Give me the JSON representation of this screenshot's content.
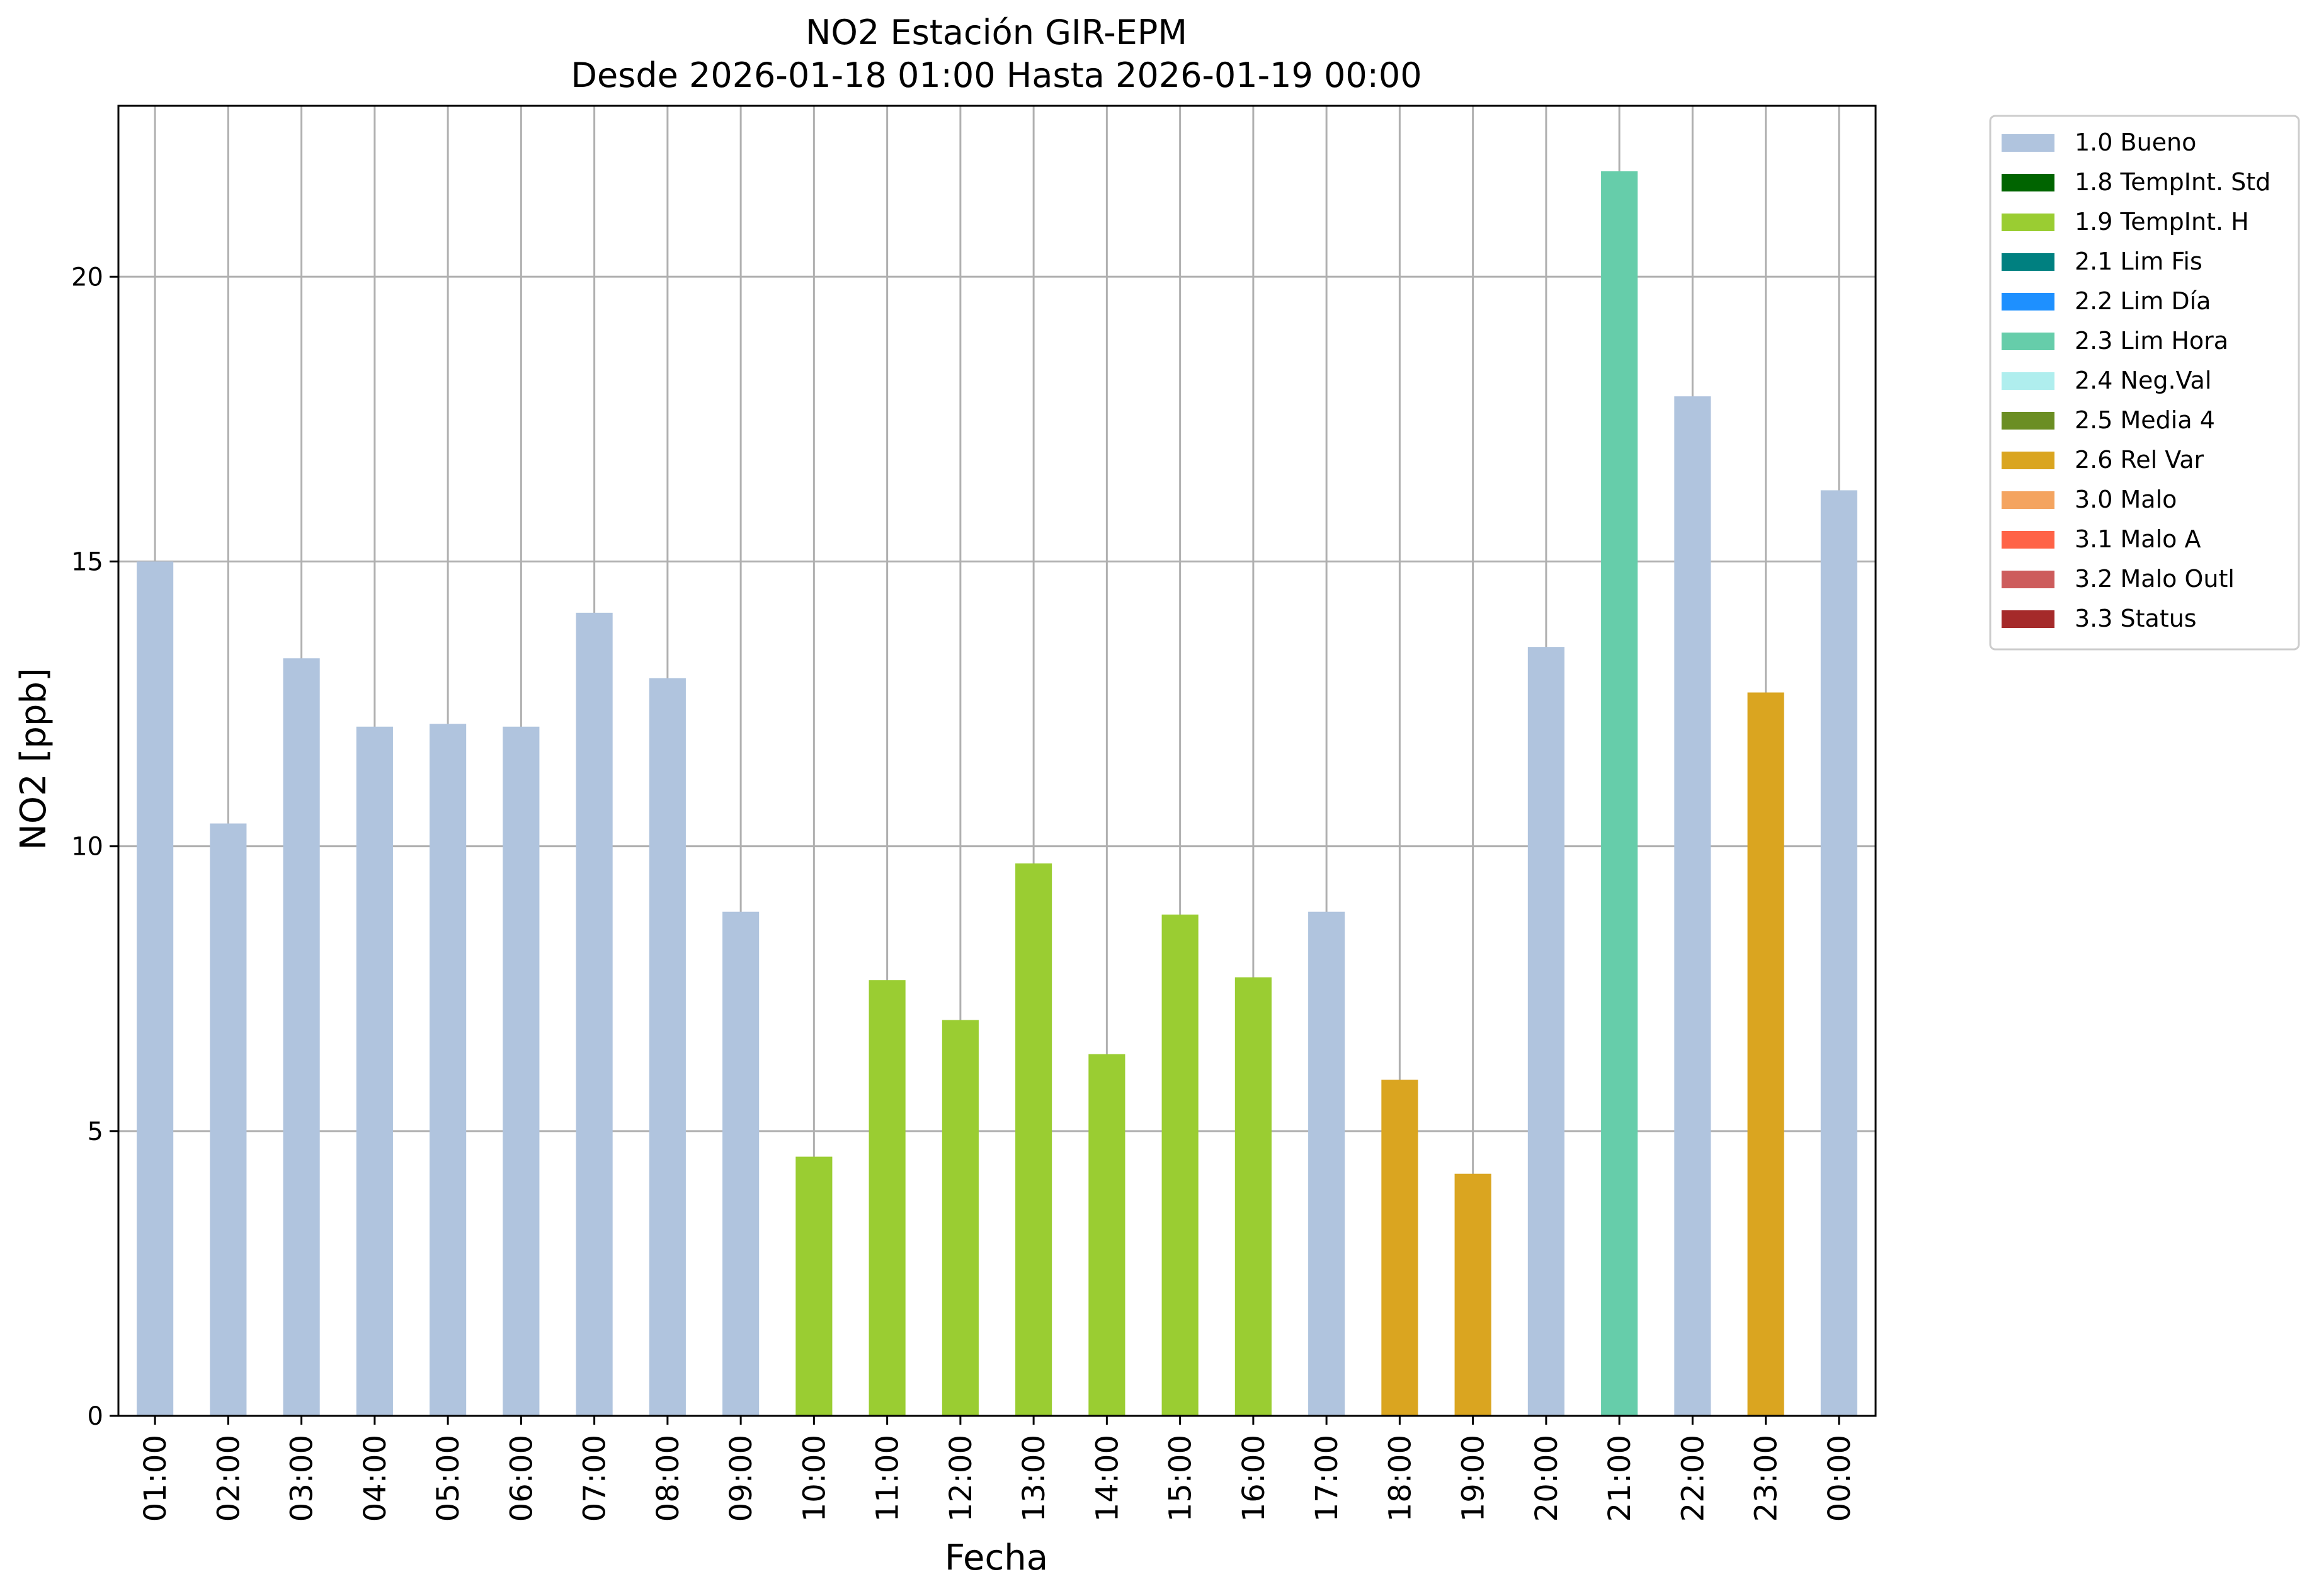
{
  "chart_data": {
    "type": "bar",
    "title": "NO2 Estación GIR-EPM",
    "subtitle": "Desde 2026-01-18 01:00 Hasta 2026-01-19 00:00",
    "xlabel": "Fecha",
    "ylabel": "NO2 [ppb]",
    "ylim": [
      0,
      23
    ],
    "yticks": [
      0,
      5,
      10,
      15,
      20
    ],
    "grid": true,
    "legend_position": "outside-right",
    "categories": [
      "01:00",
      "02:00",
      "03:00",
      "04:00",
      "05:00",
      "06:00",
      "07:00",
      "08:00",
      "09:00",
      "10:00",
      "11:00",
      "12:00",
      "13:00",
      "14:00",
      "15:00",
      "16:00",
      "17:00",
      "18:00",
      "19:00",
      "20:00",
      "21:00",
      "22:00",
      "23:00",
      "00:00"
    ],
    "values": [
      15.0,
      10.4,
      13.3,
      12.1,
      12.15,
      12.1,
      14.1,
      12.95,
      8.85,
      4.55,
      7.65,
      6.95,
      9.7,
      6.35,
      8.8,
      7.7,
      8.85,
      5.9,
      4.25,
      13.5,
      21.85,
      17.9,
      12.7,
      16.25
    ],
    "flags": [
      "1.0 Bueno",
      "1.0 Bueno",
      "1.0 Bueno",
      "1.0 Bueno",
      "1.0 Bueno",
      "1.0 Bueno",
      "1.0 Bueno",
      "1.0 Bueno",
      "1.0 Bueno",
      "1.9 TempInt. H",
      "1.9 TempInt. H",
      "1.9 TempInt. H",
      "1.9 TempInt. H",
      "1.9 TempInt. H",
      "1.9 TempInt. H",
      "1.9 TempInt. H",
      "1.0 Bueno",
      "2.6 Rel Var",
      "2.6 Rel Var",
      "1.0 Bueno",
      "2.3 Lim Hora",
      "1.0 Bueno",
      "2.6 Rel Var",
      "1.0 Bueno"
    ],
    "legend": [
      {
        "label": "1.0 Bueno",
        "color": "#b0c4de"
      },
      {
        "label": "1.8 TempInt. Std",
        "color": "#006400"
      },
      {
        "label": "1.9 TempInt. H",
        "color": "#9acd32"
      },
      {
        "label": "2.1 Lim Fis",
        "color": "#008080"
      },
      {
        "label": "2.2 Lim Día",
        "color": "#1e90ff"
      },
      {
        "label": "2.3 Lim Hora",
        "color": "#66cdaa"
      },
      {
        "label": "2.4 Neg.Val",
        "color": "#afeeee"
      },
      {
        "label": "2.5 Media 4",
        "color": "#6b8e23"
      },
      {
        "label": "2.6 Rel Var",
        "color": "#daa520"
      },
      {
        "label": "3.0 Malo",
        "color": "#f4a460"
      },
      {
        "label": "3.1 Malo A",
        "color": "#ff6347"
      },
      {
        "label": "3.2 Malo Outl",
        "color": "#cd5c5c"
      },
      {
        "label": "3.3 Status",
        "color": "#a52a2a"
      }
    ]
  }
}
